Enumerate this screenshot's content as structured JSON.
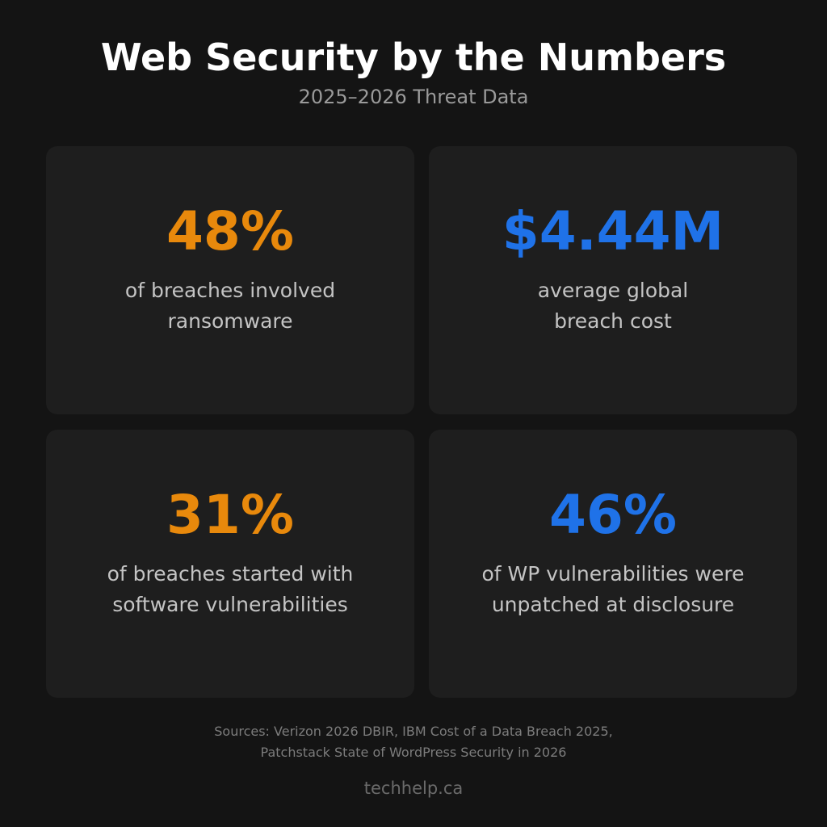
{
  "header": {
    "title": "Web Security by the Numbers",
    "subtitle": "2025–2026 Threat Data"
  },
  "cards": [
    {
      "value": "48%",
      "accent": "#e8890c",
      "lines": [
        "of breaches involved",
        "ransomware"
      ]
    },
    {
      "value": "$4.44M",
      "accent": "#1f72e8",
      "lines": [
        "average global",
        "breach cost"
      ]
    },
    {
      "value": "31%",
      "accent": "#e8890c",
      "lines": [
        "of breaches started with",
        "software vulnerabilities"
      ]
    },
    {
      "value": "46%",
      "accent": "#1f72e8",
      "lines": [
        "of WP vulnerabilities were",
        "unpatched at disclosure"
      ]
    }
  ],
  "footer": {
    "sources": [
      "Sources: Verizon 2026 DBIR, IBM Cost of a Data Breach 2025,",
      "Patchstack State of WordPress Security in 2026"
    ],
    "brand": "techhelp.ca"
  }
}
